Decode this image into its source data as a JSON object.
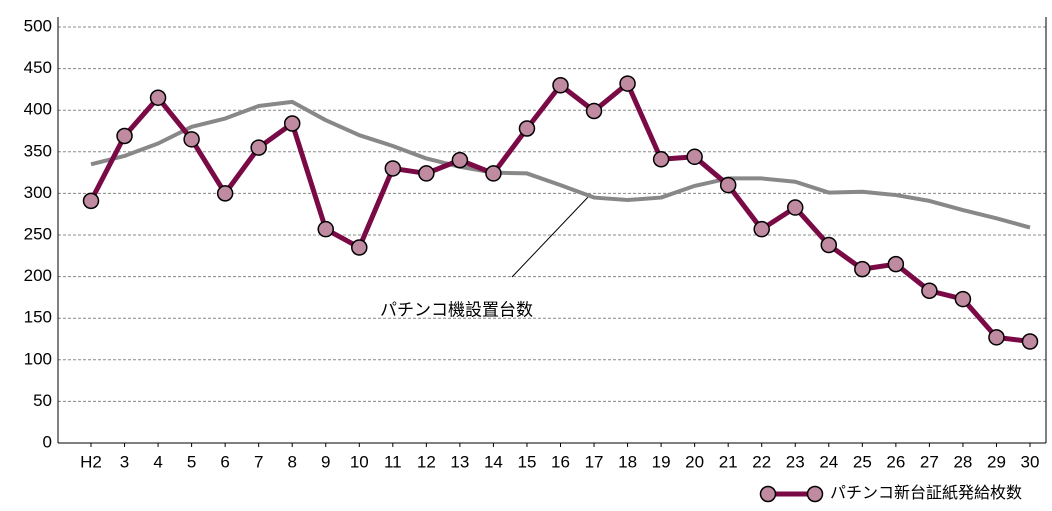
{
  "chart_data": {
    "type": "line",
    "categories": [
      "H2",
      "3",
      "4",
      "5",
      "6",
      "7",
      "8",
      "9",
      "10",
      "11",
      "12",
      "13",
      "14",
      "15",
      "16",
      "17",
      "18",
      "19",
      "20",
      "21",
      "22",
      "23",
      "24",
      "25",
      "26",
      "27",
      "28",
      "29",
      "30"
    ],
    "series": [
      {
        "name": "パチンコ新台証紙発給枚数",
        "color": "#7a0a45",
        "marker_color": "#c08aa0",
        "markers": true,
        "values": [
          291,
          369,
          415,
          365,
          300,
          355,
          384,
          257,
          235,
          330,
          324,
          340,
          324,
          378,
          430,
          399,
          432,
          341,
          344,
          310,
          257,
          283,
          238,
          209,
          215,
          183,
          173,
          127,
          122
        ]
      },
      {
        "name": "パチンコ機設置台数",
        "color": "#888888",
        "markers": false,
        "values": [
          335,
          345,
          360,
          380,
          390,
          405,
          410,
          388,
          370,
          357,
          342,
          332,
          325,
          324,
          310,
          295,
          292,
          295,
          309,
          318,
          318,
          314,
          301,
          302,
          298,
          291,
          280,
          270,
          259
        ]
      }
    ],
    "ylim": [
      0,
      500
    ],
    "yticks": [
      0,
      50,
      100,
      150,
      200,
      250,
      300,
      350,
      400,
      450,
      500
    ],
    "grid": true
  }
}
